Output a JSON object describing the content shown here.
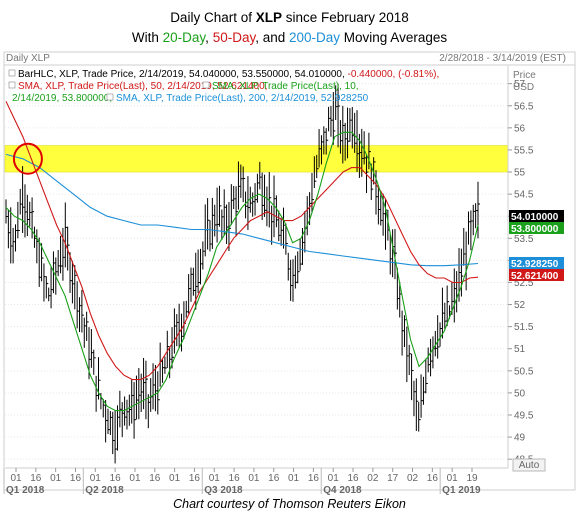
{
  "title": {
    "pre": "Daily Chart of ",
    "ticker": "XLP",
    "post": " since February 2018",
    "line2_pre": "With ",
    "ma20": "20-Day",
    "sep1": ", ",
    "ma50": "50-Day",
    "sep2": ", and ",
    "ma200": "200-Day",
    "line2_post": " Moving Averages"
  },
  "header": {
    "left": "Daily XLP",
    "right": "2/28/2018 - 3/14/2019 (EST)"
  },
  "axis": {
    "price_label": "Price",
    "currency": "USD",
    "auto": "Auto"
  },
  "legend": [
    {
      "text": "BarHLC, XLP, Trade Price, 2/14/2019, 54.040000, 53.550000, 54.010000, ",
      "change": "-0.440000, (-0.81%),",
      "color": "#000000"
    },
    {
      "text": "SMA, XLP, Trade Price(Last),  50, 2/14/2019, 52.621400,",
      "color": "#d01818"
    },
    {
      "text": "SMA, XLP, Trade Price(Last),  10,",
      "color": "#1aa01a"
    },
    {
      "text": "2/14/2019, 53.800000,",
      "color": "#1aa01a"
    },
    {
      "text": "SMA, XLP, Trade Price(Last),  200, 2/14/2019, 52.928250",
      "color": "#1c8fd8"
    }
  ],
  "colors": {
    "price": "#000000",
    "sma10": "#1aa01a",
    "sma50": "#d01818",
    "sma200": "#1c8fd8",
    "highlight": "#ffff33",
    "circle": "#e00000"
  },
  "caption": "Chart courtesy of Thomson Reuters Eikon",
  "chart_data": {
    "type": "line",
    "ylim": [
      48.3,
      57.4
    ],
    "yticks": [
      "48.5",
      "49",
      "49.5",
      "50",
      "50.5",
      "51",
      "51.5",
      "52",
      "52.5",
      "53",
      "53.5",
      "54",
      "54.5",
      "55",
      "55.5",
      "56",
      "56.5",
      "57"
    ],
    "highlight_band": [
      55.0,
      55.6
    ],
    "last_values": [
      {
        "label": "54.010000",
        "value": 54.01,
        "color": "#000000",
        "text_color": "#ffffff"
      },
      {
        "label": "53.800000",
        "value": 53.8,
        "color": "#1aa01a",
        "text_color": "#ffffff"
      },
      {
        "label": "52.928250",
        "value": 52.93,
        "color": "#1c8fd8",
        "text_color": "#ffffff"
      },
      {
        "label": "52.621400",
        "value": 52.62,
        "color": "#d01818",
        "text_color": "#ffffff"
      }
    ],
    "x_ticks": [
      "01",
      "16",
      "01",
      "16",
      "01",
      "16",
      "01",
      "16",
      "01",
      "16",
      "01",
      "16",
      "01",
      "16",
      "01",
      "16",
      "01",
      "16",
      "02",
      "17",
      "02",
      "16",
      "01",
      "19"
    ],
    "quarters": [
      {
        "label": "Q1 2018",
        "tick": 0
      },
      {
        "label": "Q2 2018",
        "tick": 4
      },
      {
        "label": "Q3 2018",
        "tick": 10
      },
      {
        "label": "Q4 2018",
        "tick": 16
      },
      {
        "label": "Q1 2019",
        "tick": 22
      }
    ],
    "price_path": [
      [
        0,
        54.0
      ],
      [
        1,
        53.4
      ],
      [
        2,
        54.6
      ],
      [
        3,
        53.8
      ],
      [
        4,
        52.9
      ],
      [
        5,
        52.2
      ],
      [
        6,
        52.8
      ],
      [
        7,
        53.4
      ],
      [
        8,
        52.6
      ],
      [
        9,
        51.8
      ],
      [
        10,
        50.9
      ],
      [
        11,
        50.0
      ],
      [
        12,
        49.5
      ],
      [
        13,
        49.1
      ],
      [
        14,
        49.8
      ],
      [
        15,
        49.6
      ],
      [
        16,
        50.1
      ],
      [
        17,
        49.8
      ],
      [
        18,
        50.2
      ],
      [
        19,
        50.6
      ],
      [
        20,
        51.2
      ],
      [
        21,
        51.7
      ],
      [
        22,
        52.4
      ],
      [
        23,
        53.0
      ],
      [
        24,
        53.6
      ],
      [
        25,
        54.1
      ],
      [
        26,
        53.8
      ],
      [
        27,
        54.3
      ],
      [
        28,
        54.6
      ],
      [
        29,
        54.2
      ],
      [
        30,
        54.8
      ],
      [
        31,
        54.4
      ],
      [
        32,
        53.9
      ],
      [
        33,
        53.4
      ],
      [
        34,
        52.6
      ],
      [
        35,
        53.3
      ],
      [
        36,
        54.3
      ],
      [
        37,
        55.2
      ],
      [
        38,
        55.9
      ],
      [
        39,
        56.4
      ],
      [
        40,
        55.7
      ],
      [
        41,
        56.2
      ],
      [
        42,
        55.6
      ],
      [
        43,
        55.2
      ],
      [
        44,
        54.6
      ],
      [
        45,
        53.8
      ],
      [
        46,
        53.0
      ],
      [
        47,
        51.6
      ],
      [
        48,
        50.5
      ],
      [
        49,
        49.2
      ],
      [
        50,
        50.8
      ],
      [
        51,
        51.3
      ],
      [
        52,
        51.6
      ],
      [
        53,
        52.0
      ],
      [
        54,
        52.7
      ],
      [
        55,
        53.6
      ],
      [
        56,
        54.0
      ]
    ],
    "sma10": [
      [
        0,
        54.2
      ],
      [
        1,
        54.0
      ],
      [
        2,
        53.9
      ],
      [
        3,
        53.7
      ],
      [
        4,
        53.4
      ],
      [
        5,
        53.0
      ],
      [
        6,
        52.6
      ],
      [
        7,
        52.2
      ],
      [
        8,
        51.6
      ],
      [
        9,
        51.0
      ],
      [
        10,
        50.4
      ],
      [
        11,
        50.0
      ],
      [
        12,
        49.7
      ],
      [
        13,
        49.6
      ],
      [
        14,
        49.6
      ],
      [
        15,
        49.7
      ],
      [
        16,
        49.8
      ],
      [
        17,
        49.9
      ],
      [
        18,
        50.0
      ],
      [
        19,
        50.3
      ],
      [
        20,
        50.8
      ],
      [
        21,
        51.2
      ],
      [
        22,
        51.7
      ],
      [
        23,
        52.2
      ],
      [
        24,
        52.7
      ],
      [
        25,
        53.3
      ],
      [
        26,
        53.6
      ],
      [
        27,
        53.9
      ],
      [
        28,
        54.2
      ],
      [
        29,
        54.4
      ],
      [
        30,
        54.5
      ],
      [
        31,
        54.4
      ],
      [
        32,
        54.2
      ],
      [
        33,
        53.9
      ],
      [
        34,
        53.4
      ],
      [
        35,
        53.5
      ],
      [
        36,
        53.9
      ],
      [
        37,
        54.5
      ],
      [
        38,
        55.2
      ],
      [
        39,
        55.8
      ],
      [
        40,
        55.9
      ],
      [
        41,
        55.9
      ],
      [
        42,
        55.7
      ],
      [
        43,
        55.3
      ],
      [
        44,
        54.8
      ],
      [
        45,
        54.2
      ],
      [
        46,
        53.2
      ],
      [
        47,
        52.2
      ],
      [
        48,
        51.2
      ],
      [
        49,
        50.6
      ],
      [
        50,
        50.8
      ],
      [
        51,
        51.1
      ],
      [
        52,
        51.4
      ],
      [
        53,
        51.9
      ],
      [
        54,
        52.4
      ],
      [
        55,
        53.0
      ],
      [
        56,
        53.8
      ]
    ],
    "sma50": [
      [
        0,
        56.6
      ],
      [
        1,
        56.2
      ],
      [
        2,
        55.8
      ],
      [
        3,
        55.3
      ],
      [
        4,
        54.8
      ],
      [
        5,
        54.3
      ],
      [
        6,
        53.8
      ],
      [
        7,
        53.4
      ],
      [
        8,
        52.9
      ],
      [
        9,
        52.4
      ],
      [
        10,
        51.8
      ],
      [
        11,
        51.3
      ],
      [
        12,
        50.9
      ],
      [
        13,
        50.6
      ],
      [
        14,
        50.4
      ],
      [
        15,
        50.3
      ],
      [
        16,
        50.3
      ],
      [
        17,
        50.4
      ],
      [
        18,
        50.6
      ],
      [
        19,
        50.9
      ],
      [
        20,
        51.2
      ],
      [
        21,
        51.5
      ],
      [
        22,
        51.9
      ],
      [
        23,
        52.3
      ],
      [
        24,
        52.6
      ],
      [
        25,
        52.9
      ],
      [
        26,
        53.2
      ],
      [
        27,
        53.5
      ],
      [
        28,
        53.7
      ],
      [
        29,
        53.9
      ],
      [
        30,
        54.0
      ],
      [
        31,
        54.1
      ],
      [
        32,
        54.0
      ],
      [
        33,
        53.9
      ],
      [
        34,
        53.9
      ],
      [
        35,
        54.0
      ],
      [
        36,
        54.2
      ],
      [
        37,
        54.4
      ],
      [
        38,
        54.6
      ],
      [
        39,
        54.8
      ],
      [
        40,
        55.0
      ],
      [
        41,
        55.1
      ],
      [
        42,
        55.1
      ],
      [
        43,
        54.9
      ],
      [
        44,
        54.7
      ],
      [
        45,
        54.4
      ],
      [
        46,
        54.0
      ],
      [
        47,
        53.6
      ],
      [
        48,
        53.2
      ],
      [
        49,
        52.9
      ],
      [
        50,
        52.7
      ],
      [
        51,
        52.6
      ],
      [
        52,
        52.6
      ],
      [
        53,
        52.5
      ],
      [
        54,
        52.5
      ],
      [
        55,
        52.6
      ],
      [
        56,
        52.62
      ]
    ],
    "sma200": [
      [
        0,
        55.4
      ],
      [
        2,
        55.3
      ],
      [
        4,
        55.1
      ],
      [
        6,
        54.8
      ],
      [
        8,
        54.5
      ],
      [
        10,
        54.2
      ],
      [
        12,
        54.0
      ],
      [
        14,
        53.9
      ],
      [
        16,
        53.8
      ],
      [
        18,
        53.8
      ],
      [
        20,
        53.75
      ],
      [
        22,
        53.7
      ],
      [
        24,
        53.7
      ],
      [
        26,
        53.65
      ],
      [
        28,
        53.6
      ],
      [
        30,
        53.5
      ],
      [
        32,
        53.4
      ],
      [
        34,
        53.3
      ],
      [
        36,
        53.2
      ],
      [
        38,
        53.15
      ],
      [
        40,
        53.1
      ],
      [
        42,
        53.05
      ],
      [
        44,
        53.0
      ],
      [
        46,
        52.95
      ],
      [
        48,
        52.9
      ],
      [
        50,
        52.88
      ],
      [
        52,
        52.88
      ],
      [
        54,
        52.9
      ],
      [
        56,
        52.93
      ]
    ]
  }
}
